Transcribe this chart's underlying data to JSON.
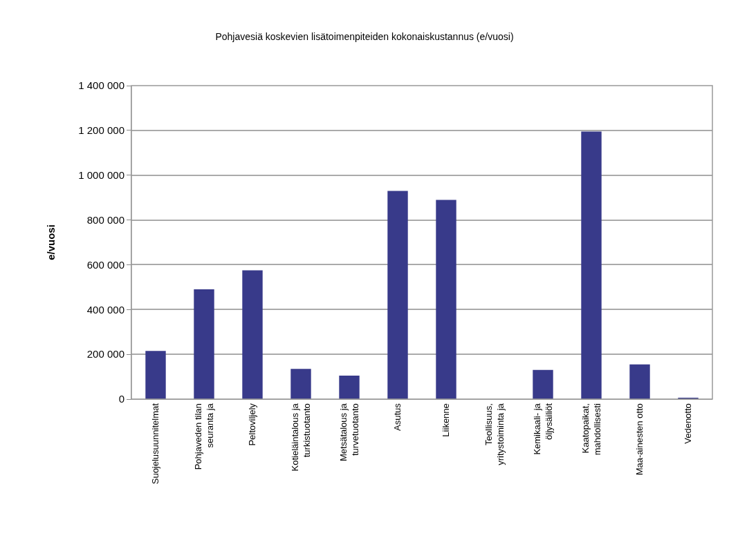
{
  "chart_data": {
    "type": "bar",
    "title": "Pohjavesiä koskevien lisätoimenpiteiden kokonaiskustannus (e/vuosi)",
    "ylabel": "e/vuosi",
    "categories": [
      "Suojelusuunnitelmat",
      "Pohjaveden tilan seuranta ja",
      "Peltoviljely",
      "Kotieläintalous ja turkistuotanto",
      "Metsätalous ja turvetuotanto",
      "Asutus",
      "Liikenne",
      "Teollisuus, yritystoiminta ja",
      "Kemikaali- ja öljysäiliöt",
      "Kaatopaikat, mahdollisesti",
      "Maa-ainesten otto",
      "Vedenotto"
    ],
    "values": [
      215000,
      490000,
      575000,
      135000,
      105000,
      930000,
      890000,
      0,
      130000,
      1195000,
      155000,
      5000
    ],
    "color": "#383a8a",
    "ylim": [
      0,
      1400000
    ],
    "yticks": [
      0,
      {
        "value": 200000,
        "label": "200 000"
      },
      {
        "value": 400000,
        "label": "400 000"
      },
      {
        "value": 600000,
        "label": "600 000"
      },
      {
        "value": 800000,
        "label": "800 000"
      },
      {
        "value": 1000000,
        "label": "1 000 000"
      },
      {
        "value": 1200000,
        "label": "1 200 000"
      },
      {
        "value": 1400000,
        "label": "1 400 000"
      }
    ],
    "grid": "y",
    "legend": false
  }
}
